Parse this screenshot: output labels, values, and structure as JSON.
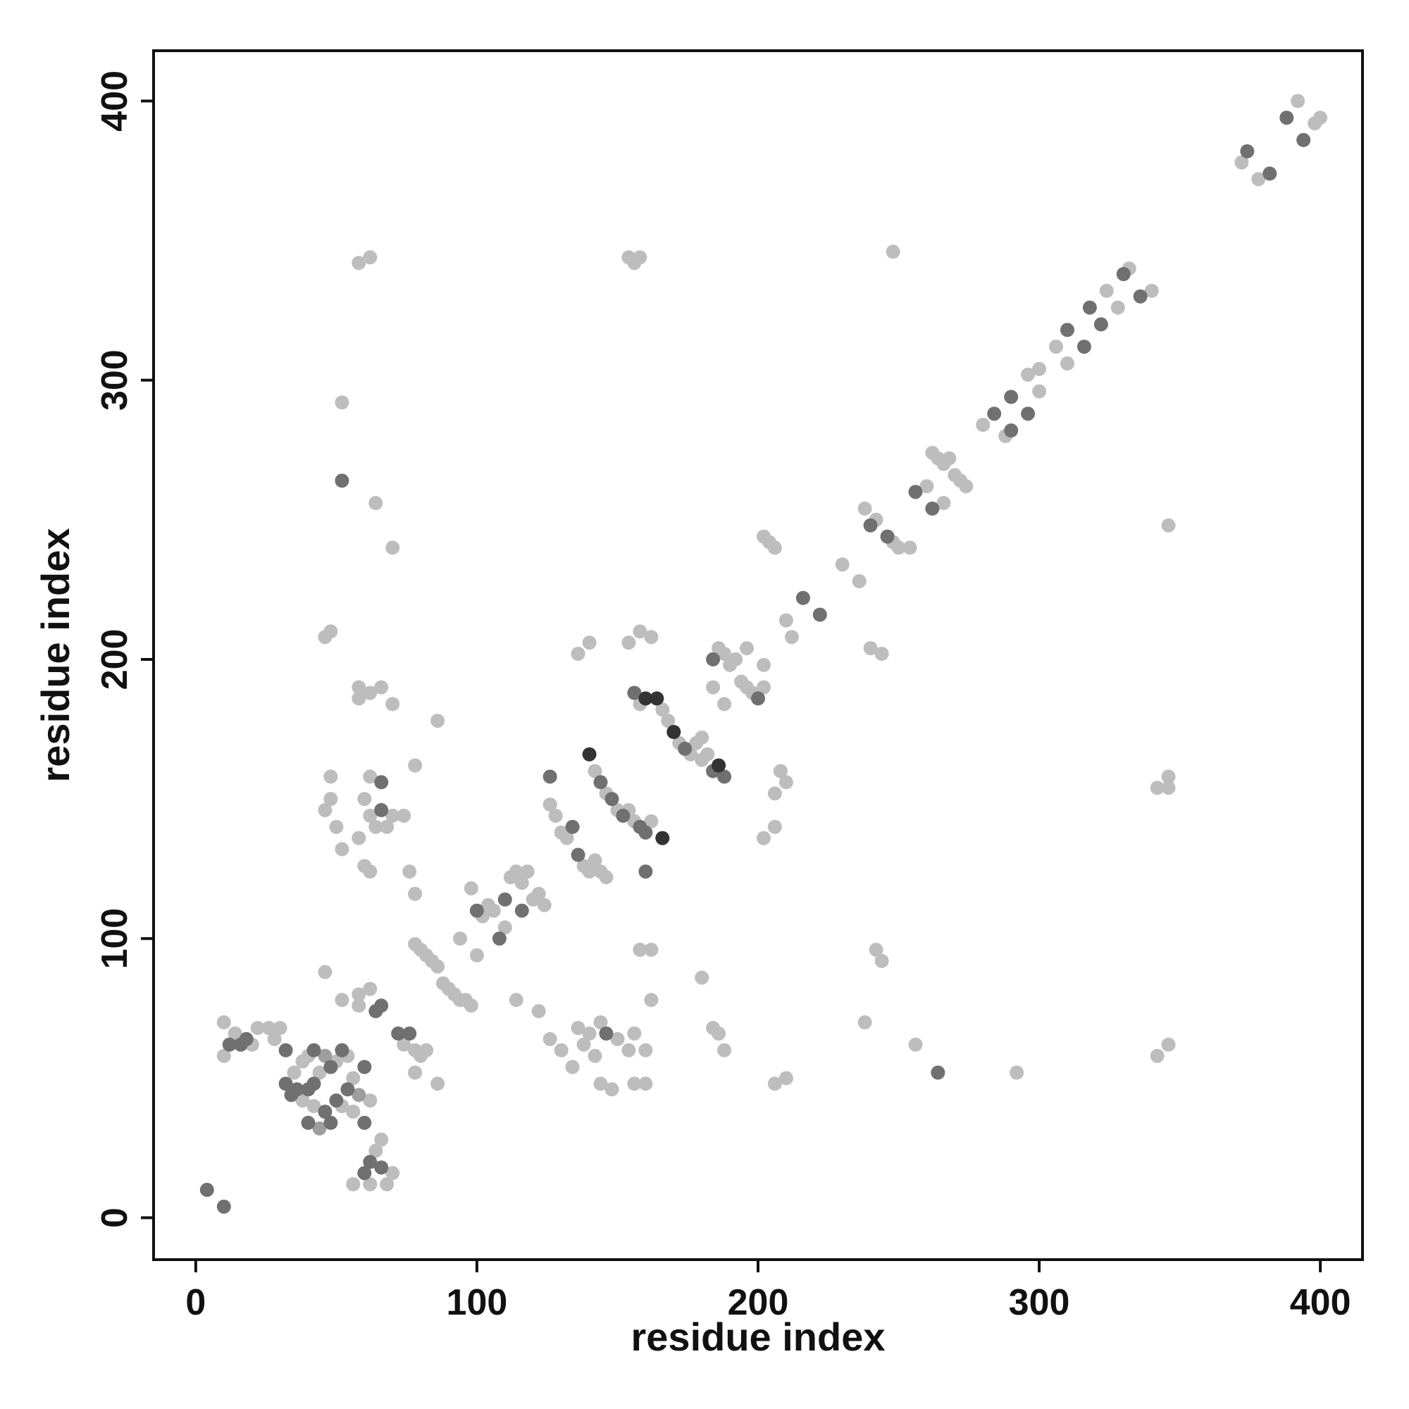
{
  "chart_data": {
    "type": "scatter",
    "title": "",
    "xlabel": "residue index",
    "ylabel": "residue index",
    "xlim": [
      -15,
      415
    ],
    "ylim": [
      -15,
      418
    ],
    "xticks": [
      0,
      100,
      200,
      300,
      400
    ],
    "yticks": [
      0,
      100,
      200,
      300,
      400
    ],
    "grid": false,
    "legend": "none",
    "colors": {
      "light": "#bdbdbd",
      "mid": "#9e9e9e",
      "dark": "#707070",
      "darkest": "#333333"
    },
    "points": [
      [
        4,
        10,
        "dark"
      ],
      [
        10,
        4,
        "dark"
      ],
      [
        10,
        70,
        "light"
      ],
      [
        10,
        58,
        "light"
      ],
      [
        12,
        62,
        "dark"
      ],
      [
        14,
        66,
        "light"
      ],
      [
        16,
        62,
        "dark"
      ],
      [
        18,
        64,
        "dark"
      ],
      [
        20,
        62,
        "light"
      ],
      [
        22,
        68,
        "light"
      ],
      [
        26,
        68,
        "light"
      ],
      [
        28,
        64,
        "light"
      ],
      [
        30,
        68,
        "light"
      ],
      [
        32,
        60,
        "dark"
      ],
      [
        32,
        48,
        "dark"
      ],
      [
        34,
        44,
        "dark"
      ],
      [
        35,
        52,
        "light"
      ],
      [
        36,
        46,
        "dark"
      ],
      [
        38,
        42,
        "light"
      ],
      [
        38,
        56,
        "light"
      ],
      [
        40,
        46,
        "dark"
      ],
      [
        40,
        58,
        "light"
      ],
      [
        42,
        48,
        "dark"
      ],
      [
        42,
        60,
        "dark"
      ],
      [
        44,
        52,
        "light"
      ],
      [
        46,
        58,
        "mid"
      ],
      [
        48,
        54,
        "dark"
      ],
      [
        50,
        56,
        "light"
      ],
      [
        52,
        60,
        "dark"
      ],
      [
        54,
        58,
        "light"
      ],
      [
        40,
        34,
        "dark"
      ],
      [
        42,
        40,
        "light"
      ],
      [
        44,
        32,
        "mid"
      ],
      [
        46,
        38,
        "dark"
      ],
      [
        48,
        34,
        "dark"
      ],
      [
        50,
        42,
        "dark"
      ],
      [
        52,
        40,
        "light"
      ],
      [
        54,
        46,
        "dark"
      ],
      [
        56,
        50,
        "light"
      ],
      [
        58,
        44,
        "mid"
      ],
      [
        60,
        54,
        "dark"
      ],
      [
        56,
        38,
        "light"
      ],
      [
        60,
        34,
        "dark"
      ],
      [
        62,
        42,
        "light"
      ],
      [
        56,
        12,
        "light"
      ],
      [
        60,
        16,
        "dark"
      ],
      [
        62,
        20,
        "dark"
      ],
      [
        62,
        12,
        "light"
      ],
      [
        64,
        24,
        "light"
      ],
      [
        66,
        18,
        "dark"
      ],
      [
        66,
        28,
        "light"
      ],
      [
        68,
        12,
        "light"
      ],
      [
        70,
        16,
        "light"
      ],
      [
        46,
        146,
        "light"
      ],
      [
        48,
        150,
        "light"
      ],
      [
        48,
        158,
        "light"
      ],
      [
        50,
        140,
        "light"
      ],
      [
        52,
        132,
        "light"
      ],
      [
        58,
        136,
        "light"
      ],
      [
        60,
        150,
        "light"
      ],
      [
        62,
        144,
        "light"
      ],
      [
        62,
        158,
        "light"
      ],
      [
        64,
        140,
        "light"
      ],
      [
        66,
        156,
        "dark"
      ],
      [
        66,
        146,
        "dark"
      ],
      [
        68,
        140,
        "light"
      ],
      [
        70,
        144,
        "light"
      ],
      [
        60,
        126,
        "light"
      ],
      [
        62,
        124,
        "light"
      ],
      [
        46,
        208,
        "light"
      ],
      [
        48,
        210,
        "light"
      ],
      [
        58,
        190,
        "light"
      ],
      [
        62,
        188,
        "light"
      ],
      [
        66,
        190,
        "light"
      ],
      [
        70,
        184,
        "light"
      ],
      [
        58,
        186,
        "light"
      ],
      [
        46,
        88,
        "light"
      ],
      [
        52,
        78,
        "light"
      ],
      [
        58,
        80,
        "light"
      ],
      [
        62,
        82,
        "light"
      ],
      [
        64,
        74,
        "dark"
      ],
      [
        66,
        76,
        "dark"
      ],
      [
        58,
        76,
        "light"
      ],
      [
        72,
        66,
        "dark"
      ],
      [
        74,
        62,
        "light"
      ],
      [
        76,
        66,
        "dark"
      ],
      [
        78,
        60,
        "light"
      ],
      [
        80,
        58,
        "light"
      ],
      [
        82,
        60,
        "light"
      ],
      [
        78,
        52,
        "light"
      ],
      [
        86,
        48,
        "light"
      ],
      [
        76,
        124,
        "light"
      ],
      [
        78,
        116,
        "light"
      ],
      [
        74,
        144,
        "light"
      ],
      [
        78,
        162,
        "light"
      ],
      [
        86,
        178,
        "light"
      ],
      [
        70,
        240,
        "light"
      ],
      [
        64,
        256,
        "light"
      ],
      [
        52,
        292,
        "light"
      ],
      [
        52,
        264,
        "dark"
      ],
      [
        58,
        342,
        "light"
      ],
      [
        62,
        344,
        "light"
      ],
      [
        78,
        98,
        "light"
      ],
      [
        80,
        96,
        "light"
      ],
      [
        82,
        94,
        "light"
      ],
      [
        84,
        92,
        "light"
      ],
      [
        86,
        90,
        "light"
      ],
      [
        88,
        84,
        "light"
      ],
      [
        90,
        82,
        "light"
      ],
      [
        92,
        80,
        "light"
      ],
      [
        94,
        78,
        "light"
      ],
      [
        96,
        78,
        "light"
      ],
      [
        98,
        76,
        "light"
      ],
      [
        94,
        100,
        "light"
      ],
      [
        100,
        110,
        "dark"
      ],
      [
        102,
        108,
        "light"
      ],
      [
        104,
        112,
        "light"
      ],
      [
        106,
        110,
        "light"
      ],
      [
        108,
        100,
        "dark"
      ],
      [
        110,
        104,
        "light"
      ],
      [
        110,
        114,
        "dark"
      ],
      [
        112,
        122,
        "light"
      ],
      [
        114,
        124,
        "light"
      ],
      [
        116,
        120,
        "light"
      ],
      [
        118,
        124,
        "light"
      ],
      [
        116,
        110,
        "dark"
      ],
      [
        100,
        94,
        "light"
      ],
      [
        98,
        118,
        "light"
      ],
      [
        120,
        114,
        "light"
      ],
      [
        122,
        116,
        "light"
      ],
      [
        124,
        112,
        "light"
      ],
      [
        126,
        148,
        "light"
      ],
      [
        128,
        144,
        "light"
      ],
      [
        130,
        138,
        "light"
      ],
      [
        132,
        136,
        "light"
      ],
      [
        134,
        140,
        "dark"
      ],
      [
        126,
        158,
        "dark"
      ],
      [
        122,
        74,
        "light"
      ],
      [
        126,
        64,
        "light"
      ],
      [
        130,
        60,
        "light"
      ],
      [
        134,
        54,
        "light"
      ],
      [
        114,
        78,
        "light"
      ],
      [
        136,
        130,
        "dark"
      ],
      [
        138,
        126,
        "light"
      ],
      [
        140,
        124,
        "light"
      ],
      [
        142,
        128,
        "light"
      ],
      [
        144,
        124,
        "light"
      ],
      [
        146,
        122,
        "light"
      ],
      [
        140,
        166,
        "darkest"
      ],
      [
        142,
        160,
        "light"
      ],
      [
        144,
        156,
        "dark"
      ],
      [
        146,
        152,
        "light"
      ],
      [
        148,
        150,
        "dark"
      ],
      [
        150,
        146,
        "light"
      ],
      [
        152,
        144,
        "dark"
      ],
      [
        154,
        146,
        "light"
      ],
      [
        156,
        142,
        "light"
      ],
      [
        158,
        140,
        "dark"
      ],
      [
        160,
        138,
        "dark"
      ],
      [
        162,
        142,
        "light"
      ],
      [
        166,
        136,
        "darkest"
      ],
      [
        160,
        124,
        "dark"
      ],
      [
        136,
        202,
        "light"
      ],
      [
        140,
        206,
        "light"
      ],
      [
        154,
        206,
        "light"
      ],
      [
        158,
        210,
        "light"
      ],
      [
        162,
        208,
        "light"
      ],
      [
        154,
        344,
        "light"
      ],
      [
        156,
        342,
        "light"
      ],
      [
        158,
        344,
        "light"
      ],
      [
        136,
        68,
        "light"
      ],
      [
        138,
        62,
        "light"
      ],
      [
        140,
        66,
        "light"
      ],
      [
        142,
        58,
        "light"
      ],
      [
        144,
        70,
        "light"
      ],
      [
        146,
        66,
        "dark"
      ],
      [
        150,
        64,
        "light"
      ],
      [
        154,
        60,
        "light"
      ],
      [
        156,
        66,
        "light"
      ],
      [
        160,
        60,
        "light"
      ],
      [
        144,
        48,
        "light"
      ],
      [
        148,
        46,
        "light"
      ],
      [
        156,
        48,
        "light"
      ],
      [
        160,
        48,
        "light"
      ],
      [
        158,
        96,
        "light"
      ],
      [
        162,
        96,
        "light"
      ],
      [
        162,
        78,
        "light"
      ],
      [
        156,
        188,
        "dark"
      ],
      [
        158,
        184,
        "light"
      ],
      [
        160,
        186,
        "darkest"
      ],
      [
        164,
        186,
        "darkest"
      ],
      [
        166,
        182,
        "light"
      ],
      [
        168,
        178,
        "light"
      ],
      [
        170,
        174,
        "darkest"
      ],
      [
        172,
        170,
        "light"
      ],
      [
        174,
        168,
        "dark"
      ],
      [
        176,
        166,
        "light"
      ],
      [
        178,
        170,
        "light"
      ],
      [
        180,
        172,
        "light"
      ],
      [
        182,
        166,
        "light"
      ],
      [
        184,
        160,
        "dark"
      ],
      [
        186,
        162,
        "darkest"
      ],
      [
        188,
        158,
        "dark"
      ],
      [
        180,
        164,
        "light"
      ],
      [
        184,
        200,
        "dark"
      ],
      [
        186,
        204,
        "light"
      ],
      [
        188,
        202,
        "light"
      ],
      [
        190,
        198,
        "light"
      ],
      [
        192,
        200,
        "light"
      ],
      [
        194,
        192,
        "light"
      ],
      [
        196,
        190,
        "light"
      ],
      [
        198,
        188,
        "light"
      ],
      [
        200,
        186,
        "dark"
      ],
      [
        202,
        190,
        "light"
      ],
      [
        196,
        204,
        "light"
      ],
      [
        202,
        198,
        "light"
      ],
      [
        188,
        184,
        "light"
      ],
      [
        184,
        190,
        "light"
      ],
      [
        202,
        244,
        "light"
      ],
      [
        204,
        242,
        "light"
      ],
      [
        206,
        240,
        "light"
      ],
      [
        202,
        136,
        "light"
      ],
      [
        206,
        140,
        "light"
      ],
      [
        206,
        152,
        "light"
      ],
      [
        208,
        160,
        "light"
      ],
      [
        210,
        156,
        "light"
      ],
      [
        206,
        48,
        "light"
      ],
      [
        210,
        50,
        "light"
      ],
      [
        186,
        66,
        "light"
      ],
      [
        188,
        60,
        "light"
      ],
      [
        184,
        68,
        "light"
      ],
      [
        180,
        86,
        "light"
      ],
      [
        210,
        214,
        "light"
      ],
      [
        212,
        208,
        "light"
      ],
      [
        216,
        222,
        "dark"
      ],
      [
        222,
        216,
        "dark"
      ],
      [
        230,
        234,
        "light"
      ],
      [
        236,
        228,
        "light"
      ],
      [
        238,
        254,
        "light"
      ],
      [
        240,
        248,
        "dark"
      ],
      [
        242,
        250,
        "light"
      ],
      [
        246,
        244,
        "dark"
      ],
      [
        248,
        242,
        "light"
      ],
      [
        250,
        240,
        "light"
      ],
      [
        254,
        240,
        "light"
      ],
      [
        240,
        204,
        "light"
      ],
      [
        244,
        202,
        "light"
      ],
      [
        242,
        96,
        "light"
      ],
      [
        244,
        92,
        "light"
      ],
      [
        238,
        70,
        "light"
      ],
      [
        248,
        346,
        "light"
      ],
      [
        256,
        62,
        "light"
      ],
      [
        264,
        52,
        "dark"
      ],
      [
        256,
        260,
        "dark"
      ],
      [
        260,
        262,
        "light"
      ],
      [
        262,
        254,
        "dark"
      ],
      [
        266,
        256,
        "light"
      ],
      [
        262,
        274,
        "light"
      ],
      [
        264,
        272,
        "light"
      ],
      [
        266,
        270,
        "light"
      ],
      [
        268,
        272,
        "light"
      ],
      [
        270,
        266,
        "light"
      ],
      [
        272,
        264,
        "light"
      ],
      [
        274,
        262,
        "light"
      ],
      [
        280,
        284,
        "light"
      ],
      [
        284,
        288,
        "dark"
      ],
      [
        288,
        280,
        "light"
      ],
      [
        290,
        282,
        "dark"
      ],
      [
        290,
        294,
        "dark"
      ],
      [
        296,
        288,
        "dark"
      ],
      [
        296,
        302,
        "light"
      ],
      [
        300,
        304,
        "light"
      ],
      [
        300,
        296,
        "light"
      ],
      [
        310,
        306,
        "light"
      ],
      [
        306,
        312,
        "light"
      ],
      [
        310,
        318,
        "dark"
      ],
      [
        316,
        312,
        "dark"
      ],
      [
        318,
        326,
        "dark"
      ],
      [
        322,
        320,
        "dark"
      ],
      [
        324,
        332,
        "light"
      ],
      [
        328,
        326,
        "light"
      ],
      [
        330,
        338,
        "dark"
      ],
      [
        332,
        340,
        "light"
      ],
      [
        336,
        330,
        "dark"
      ],
      [
        340,
        332,
        "light"
      ],
      [
        292,
        52,
        "light"
      ],
      [
        342,
        154,
        "light"
      ],
      [
        346,
        158,
        "light"
      ],
      [
        346,
        154,
        "light"
      ],
      [
        346,
        248,
        "light"
      ],
      [
        342,
        58,
        "light"
      ],
      [
        346,
        62,
        "light"
      ],
      [
        372,
        378,
        "light"
      ],
      [
        374,
        382,
        "dark"
      ],
      [
        378,
        372,
        "light"
      ],
      [
        382,
        374,
        "dark"
      ],
      [
        388,
        394,
        "dark"
      ],
      [
        392,
        400,
        "light"
      ],
      [
        394,
        386,
        "dark"
      ],
      [
        398,
        392,
        "light"
      ],
      [
        400,
        394,
        "light"
      ]
    ]
  }
}
